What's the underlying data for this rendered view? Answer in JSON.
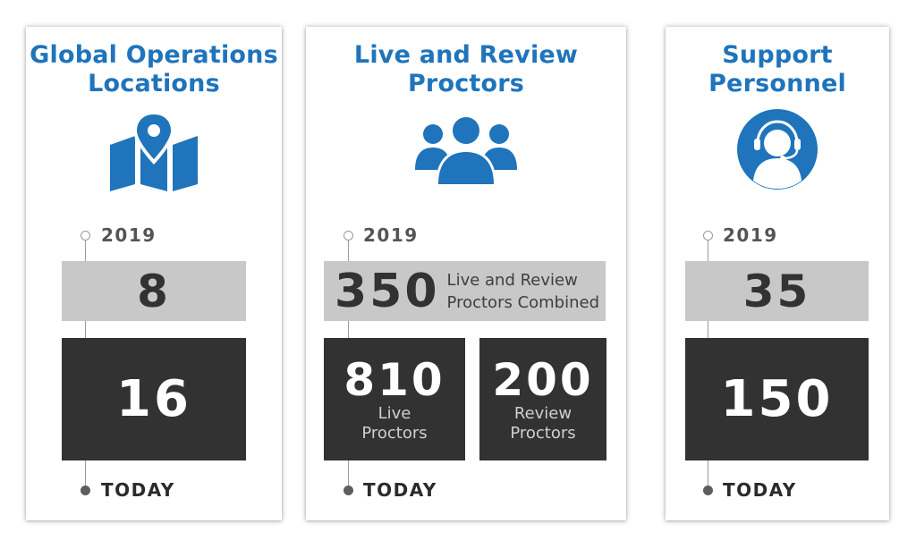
{
  "cards": [
    {
      "title_line1": "Global Operations",
      "title_line2": "Locations",
      "icon": "map-location-icon",
      "year_label": "2019",
      "value_2019": "8",
      "value_today": "16",
      "today_label": "TODAY"
    },
    {
      "title_line1": "Live and Review",
      "title_line2": "Proctors",
      "icon": "group-people-icon",
      "year_label": "2019",
      "value_2019": "350",
      "value_2019_caption_line1": "Live and Review",
      "value_2019_caption_line2": "Proctors Combined",
      "today_live_value": "810",
      "today_live_line1": "Live",
      "today_live_line2": "Proctors",
      "today_review_value": "200",
      "today_review_line1": "Review",
      "today_review_line2": "Proctors",
      "today_label": "TODAY"
    },
    {
      "title_line1": "Support",
      "title_line2": "Personnel",
      "icon": "headset-support-icon",
      "year_label": "2019",
      "value_2019": "35",
      "value_today": "150",
      "today_label": "TODAY"
    }
  ],
  "colors": {
    "title_blue": "#1f74bb",
    "light_box": "#c8c8c8",
    "dark_box": "#323232"
  }
}
